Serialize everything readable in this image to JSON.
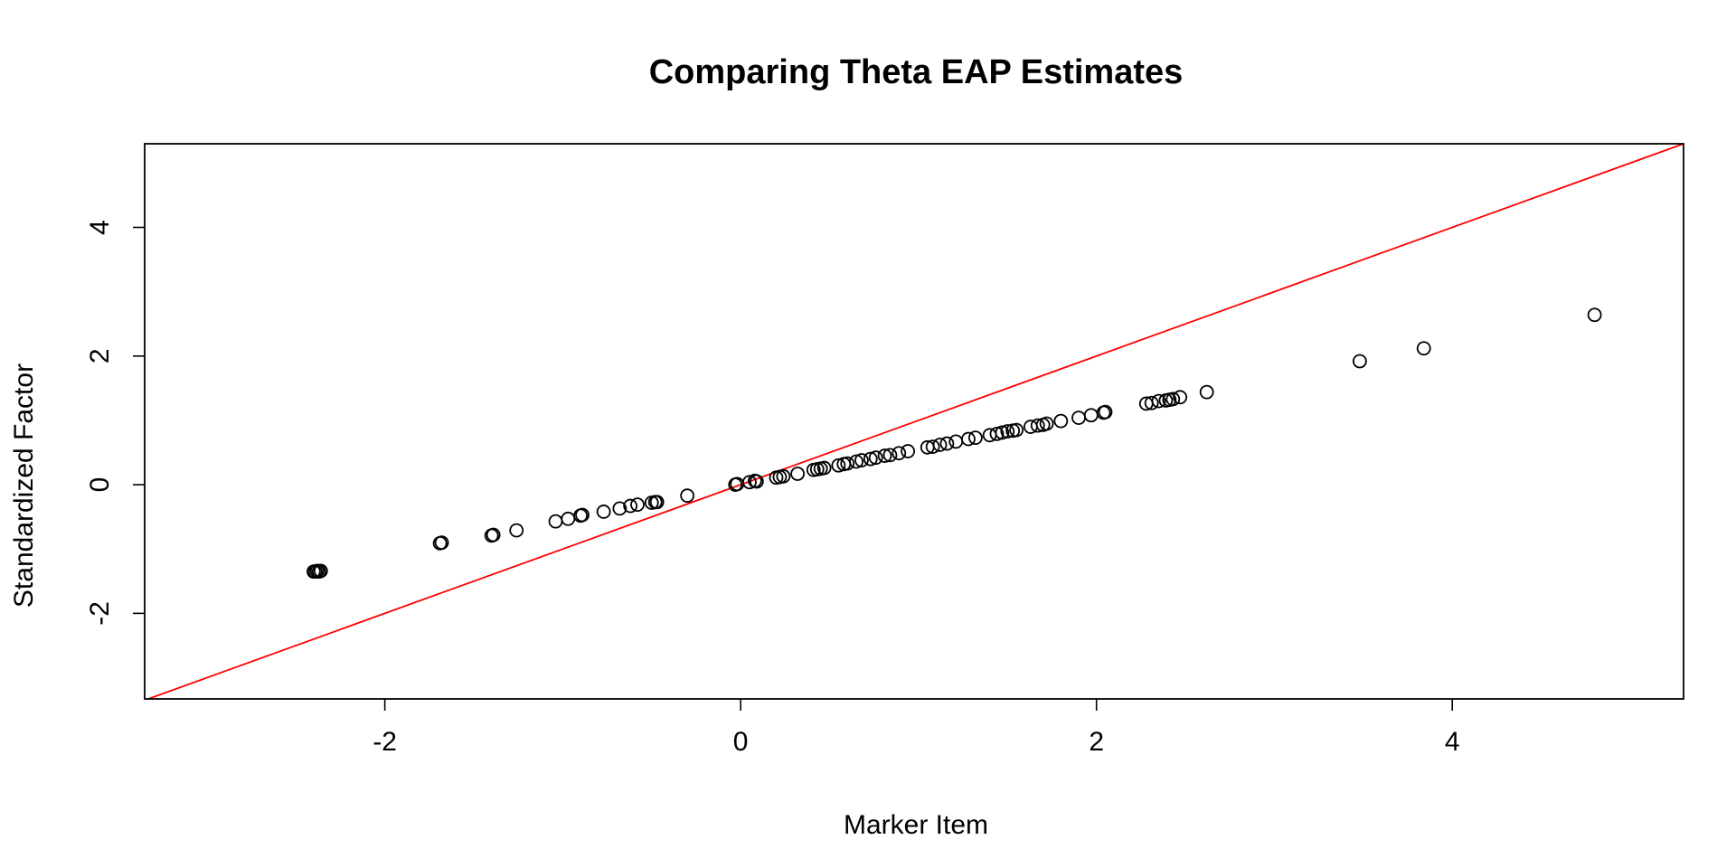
{
  "chart_data": {
    "type": "scatter",
    "title": "Comparing Theta EAP Estimates",
    "xlabel": "Marker Item",
    "ylabel": "Standardized Factor",
    "xlim": [
      -3.35,
      5.3
    ],
    "ylim": [
      -3.33,
      5.3
    ],
    "xticks": [
      -2,
      0,
      2,
      4
    ],
    "yticks": [
      -2,
      0,
      2,
      4
    ],
    "xtick_labels": [
      "-2",
      "0",
      "2",
      "4"
    ],
    "ytick_labels": [
      "-2",
      "0",
      "2",
      "4"
    ],
    "grid": false,
    "legend": "none",
    "point_color": "#000000",
    "reference_line": {
      "kind": "identity",
      "slope": 1,
      "intercept": 0,
      "color": "#ff0000"
    },
    "points": [
      [
        -2.4,
        -1.35
      ],
      [
        -2.39,
        -1.35
      ],
      [
        -2.38,
        -1.34
      ],
      [
        -2.37,
        -1.35
      ],
      [
        -2.36,
        -1.34
      ],
      [
        -1.69,
        -0.91
      ],
      [
        -1.68,
        -0.9
      ],
      [
        -1.4,
        -0.79
      ],
      [
        -1.39,
        -0.78
      ],
      [
        -1.26,
        -0.71
      ],
      [
        -1.04,
        -0.57
      ],
      [
        -0.97,
        -0.53
      ],
      [
        -0.9,
        -0.48
      ],
      [
        -0.89,
        -0.47
      ],
      [
        -0.77,
        -0.42
      ],
      [
        -0.68,
        -0.37
      ],
      [
        -0.62,
        -0.33
      ],
      [
        -0.58,
        -0.31
      ],
      [
        -0.5,
        -0.28
      ],
      [
        -0.48,
        -0.27
      ],
      [
        -0.47,
        -0.27
      ],
      [
        -0.3,
        -0.17
      ],
      [
        -0.03,
        0.0
      ],
      [
        -0.02,
        0.01
      ],
      [
        0.05,
        0.04
      ],
      [
        0.08,
        0.06
      ],
      [
        0.09,
        0.05
      ],
      [
        0.2,
        0.11
      ],
      [
        0.22,
        0.12
      ],
      [
        0.24,
        0.13
      ],
      [
        0.32,
        0.17
      ],
      [
        0.41,
        0.23
      ],
      [
        0.43,
        0.24
      ],
      [
        0.45,
        0.25
      ],
      [
        0.47,
        0.26
      ],
      [
        0.55,
        0.3
      ],
      [
        0.58,
        0.32
      ],
      [
        0.6,
        0.33
      ],
      [
        0.65,
        0.36
      ],
      [
        0.68,
        0.38
      ],
      [
        0.73,
        0.4
      ],
      [
        0.76,
        0.42
      ],
      [
        0.81,
        0.45
      ],
      [
        0.84,
        0.46
      ],
      [
        0.89,
        0.49
      ],
      [
        0.94,
        0.52
      ],
      [
        1.05,
        0.58
      ],
      [
        1.08,
        0.59
      ],
      [
        1.12,
        0.62
      ],
      [
        1.16,
        0.64
      ],
      [
        1.21,
        0.67
      ],
      [
        1.28,
        0.71
      ],
      [
        1.32,
        0.73
      ],
      [
        1.4,
        0.77
      ],
      [
        1.44,
        0.79
      ],
      [
        1.47,
        0.81
      ],
      [
        1.5,
        0.83
      ],
      [
        1.53,
        0.84
      ],
      [
        1.55,
        0.85
      ],
      [
        1.63,
        0.9
      ],
      [
        1.67,
        0.92
      ],
      [
        1.7,
        0.93
      ],
      [
        1.72,
        0.95
      ],
      [
        1.8,
        0.99
      ],
      [
        1.9,
        1.04
      ],
      [
        1.97,
        1.08
      ],
      [
        2.04,
        1.12
      ],
      [
        2.05,
        1.13
      ],
      [
        2.28,
        1.26
      ],
      [
        2.31,
        1.27
      ],
      [
        2.35,
        1.3
      ],
      [
        2.39,
        1.31
      ],
      [
        2.41,
        1.32
      ],
      [
        2.43,
        1.33
      ],
      [
        2.47,
        1.36
      ],
      [
        2.62,
        1.44
      ],
      [
        3.48,
        1.92
      ],
      [
        3.84,
        2.12
      ],
      [
        4.8,
        2.64
      ]
    ]
  }
}
